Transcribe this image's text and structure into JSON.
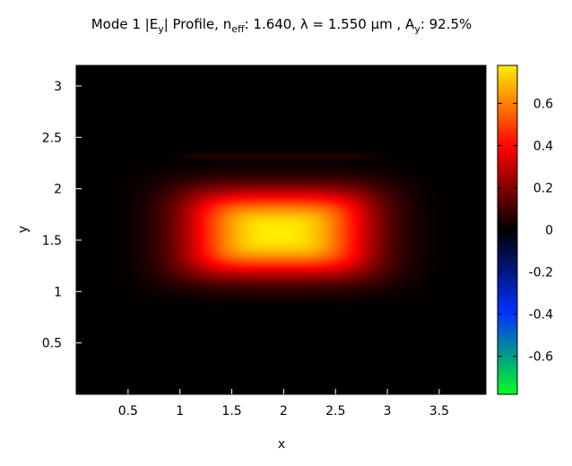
{
  "chart_data": {
    "type": "heatmap",
    "title": {
      "prefix": "Mode 1 |E",
      "sub1": "y",
      "mid1": "| Profile, n",
      "sub2": "eff",
      "mid2": ": 1.640, λ = 1.550 µm , A",
      "sub3": "y",
      "suffix": ": 92.5%"
    },
    "xlabel": "x",
    "ylabel": "y",
    "xlim": [
      0,
      3.95
    ],
    "ylim": [
      0,
      3.2
    ],
    "xticks": [
      "0.5",
      "1",
      "1.5",
      "2",
      "2.5",
      "3",
      "3.5"
    ],
    "yticks": [
      "0.5",
      "1",
      "1.5",
      "2",
      "2.5",
      "3"
    ],
    "field": {
      "center_x": 1.95,
      "center_y": 1.57,
      "core_x_range": [
        0.95,
        2.9
      ],
      "core_y_range": [
        1.15,
        2.05
      ],
      "peak": 0.78,
      "stripe_y": 2.32
    },
    "colorbar": {
      "min": -0.78,
      "max": 0.78,
      "ticks": [
        "0.6",
        "0.4",
        "0.2",
        "0",
        "-0.2",
        "-0.4",
        "-0.6"
      ],
      "colormap": [
        "#00ff20",
        "#0030ff",
        "#000000",
        "#ff0000",
        "#ffee00"
      ]
    }
  }
}
